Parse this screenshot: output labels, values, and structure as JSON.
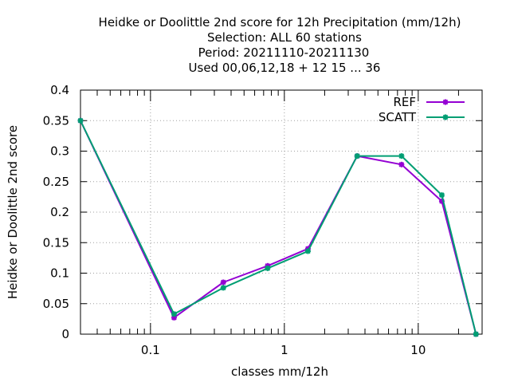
{
  "chart_data": {
    "type": "line",
    "title_lines": [
      "Heidke or Doolittle 2nd score  for 12h Precipitation (mm/12h)",
      "Selection: ALL     60 stations",
      "Period: 20211110-20211130",
      "Used  00,06,12,18 + 12 15 ... 36"
    ],
    "xlabel": "classes mm/12h",
    "ylabel": "Heidke or Doolittle 2nd score",
    "x_scale": "log",
    "xlim": [
      0.03,
      30
    ],
    "ylim": [
      0,
      0.4
    ],
    "x_ticks": [
      {
        "value": 0.1,
        "label": "0.1"
      },
      {
        "value": 1,
        "label": "1"
      },
      {
        "value": 10,
        "label": "10"
      }
    ],
    "y_ticks": [
      {
        "value": 0,
        "label": "0"
      },
      {
        "value": 0.05,
        "label": "0.05"
      },
      {
        "value": 0.1,
        "label": "0.1"
      },
      {
        "value": 0.15,
        "label": "0.15"
      },
      {
        "value": 0.2,
        "label": "0.2"
      },
      {
        "value": 0.25,
        "label": "0.25"
      },
      {
        "value": 0.3,
        "label": "0.3"
      },
      {
        "value": 0.35,
        "label": "0.35"
      },
      {
        "value": 0.4,
        "label": "0.4"
      }
    ],
    "grid": true,
    "legend_position": "top-right",
    "series": [
      {
        "name": "REF",
        "color": "#9400d3",
        "x": [
          0.03,
          0.15,
          0.35,
          0.75,
          1.5,
          3.5,
          7.5,
          15,
          27
        ],
        "values": [
          0.35,
          0.027,
          0.085,
          0.112,
          0.14,
          0.292,
          0.278,
          0.218,
          0.0
        ]
      },
      {
        "name": "SCATT",
        "color": "#009e73",
        "x": [
          0.03,
          0.15,
          0.35,
          0.75,
          1.5,
          3.5,
          7.5,
          15,
          27
        ],
        "values": [
          0.35,
          0.033,
          0.076,
          0.108,
          0.136,
          0.292,
          0.292,
          0.228,
          0.0
        ]
      }
    ]
  }
}
